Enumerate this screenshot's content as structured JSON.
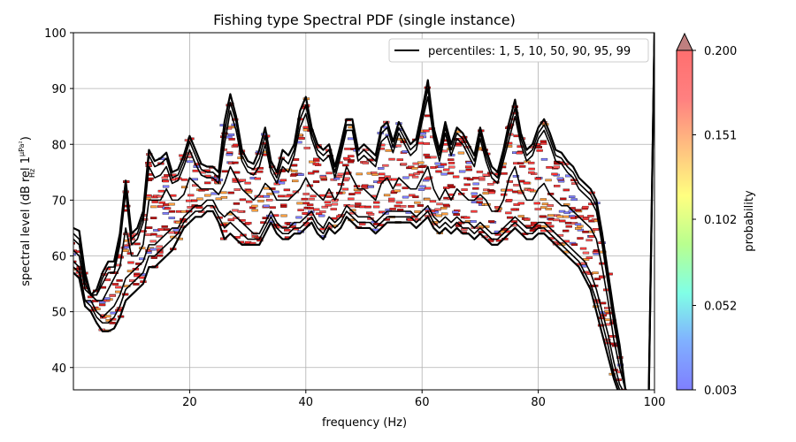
{
  "chart_data": {
    "type": "line",
    "title": "Fishing type Spectral PDF (single instance)",
    "xlabel": "frequency (Hz)",
    "ylabel_main": "spectral level (dB rel 1",
    "ylabel_num": "μPa²",
    "ylabel_den": "Hz",
    "ylabel_close": ")",
    "xlim": [
      0,
      100
    ],
    "ylim": [
      36,
      100
    ],
    "xticks": [
      20,
      40,
      60,
      80,
      100
    ],
    "yticks": [
      40,
      50,
      60,
      70,
      80,
      90,
      100
    ],
    "grid": true,
    "legend": {
      "label": "percentiles: 1, 5, 10, 50, 90, 95, 99",
      "placement": "top-right"
    },
    "colorbar": {
      "label": "probability",
      "ticks": [
        "0.200",
        "0.151",
        "0.102",
        "0.052",
        "0.003"
      ],
      "range": [
        0.003,
        0.2
      ],
      "extend": "max",
      "colors": [
        "#7f7fff",
        "#80b0ff",
        "#80ffe6",
        "#b8ff8f",
        "#ffff80",
        "#ffc080",
        "#ff8080",
        "#ff6f6f"
      ]
    },
    "x": [
      0,
      1,
      2,
      3,
      4,
      5,
      6,
      7,
      8,
      9,
      10,
      11,
      12,
      13,
      14,
      15,
      16,
      17,
      18,
      19,
      20,
      21,
      22,
      23,
      24,
      25,
      26,
      27,
      28,
      29,
      30,
      31,
      32,
      33,
      34,
      35,
      36,
      37,
      38,
      39,
      40,
      41,
      42,
      43,
      44,
      45,
      46,
      47,
      48,
      49,
      50,
      51,
      52,
      53,
      54,
      55,
      56,
      57,
      58,
      59,
      60,
      61,
      62,
      63,
      64,
      65,
      66,
      67,
      68,
      69,
      70,
      71,
      72,
      73,
      74,
      75,
      76,
      77,
      78,
      79,
      80,
      81,
      82,
      83,
      84,
      85,
      86,
      87,
      88,
      89,
      90,
      91,
      92,
      93,
      94,
      95,
      96,
      97,
      98,
      99,
      100
    ],
    "series": [
      {
        "values": [
          65,
          64.5,
          57,
          53,
          54,
          57,
          59,
          59,
          64,
          73.5,
          64,
          65,
          68,
          79,
          77,
          77.5,
          78.5,
          75,
          75.5,
          78,
          81.5,
          79,
          76.5,
          76,
          76,
          75,
          84,
          89,
          85,
          79,
          77,
          76.5,
          79,
          83,
          77,
          75,
          79,
          78,
          80,
          86,
          88.5,
          83,
          80,
          79,
          80,
          76,
          80,
          84.5,
          84.5,
          79,
          80,
          79,
          78,
          83,
          84,
          80.5,
          84,
          82,
          80,
          81,
          86,
          91.5,
          83,
          79,
          84,
          80,
          83,
          82,
          80,
          78,
          83,
          79,
          76,
          75,
          79,
          84,
          88,
          82,
          79,
          80,
          83,
          84.5,
          82,
          79,
          78.5,
          77,
          76,
          74,
          73,
          72,
          70,
          64,
          57,
          50,
          44,
          36,
          34,
          34,
          34,
          34,
          100
        ]
      },
      {
        "values": [
          64,
          63,
          56,
          53,
          53,
          56,
          58,
          58,
          63,
          72.5,
          63,
          64,
          67,
          78,
          76,
          76.5,
          77.5,
          74,
          74.5,
          77,
          80.5,
          78,
          75.5,
          75,
          75,
          74,
          82,
          87.5,
          84,
          78,
          76,
          75.5,
          77.5,
          81.5,
          76,
          74,
          77.5,
          76.5,
          79,
          84.5,
          87,
          82,
          79,
          78,
          79,
          75,
          79,
          83.5,
          83.5,
          78,
          79,
          78,
          77,
          82,
          83,
          79.5,
          83,
          81,
          79,
          80,
          85,
          90,
          82,
          78,
          83,
          79,
          82,
          81,
          79,
          77,
          82,
          78,
          75,
          74,
          78,
          82.5,
          86.5,
          81,
          78,
          79,
          82,
          83.5,
          81,
          78,
          77.5,
          76,
          75,
          73,
          72,
          71,
          69,
          63,
          56,
          49,
          43,
          36,
          34,
          34,
          34,
          34,
          100
        ]
      },
      {
        "values": [
          63,
          62,
          55,
          53,
          53,
          55,
          57,
          57,
          62,
          71.5,
          62,
          63,
          66,
          76,
          74,
          74.5,
          76,
          73,
          73.5,
          76,
          79,
          76.5,
          74.5,
          74,
          74,
          73,
          80,
          86,
          82.5,
          77,
          75,
          74.5,
          76,
          80,
          75,
          73,
          76,
          75,
          78,
          83,
          85.5,
          81,
          78,
          77,
          78,
          74,
          78,
          82.5,
          82.5,
          77,
          78,
          77,
          76,
          80.5,
          81.5,
          78.5,
          82,
          80,
          78,
          79,
          84,
          88.5,
          81,
          77,
          82,
          78,
          81,
          80,
          78,
          76,
          81,
          77,
          74,
          73,
          77,
          81,
          85,
          80,
          77,
          78,
          81,
          82.5,
          80,
          77,
          76.5,
          75,
          74,
          72,
          71,
          70,
          68,
          62,
          55,
          48,
          42,
          36,
          34,
          34,
          34,
          34,
          100
        ]
      },
      {
        "values": [
          61,
          60,
          54,
          53,
          52,
          52,
          54,
          56,
          58,
          65,
          60,
          60,
          62,
          70,
          70,
          70,
          72,
          70,
          70,
          71,
          74,
          73,
          72,
          72,
          72,
          71,
          73,
          76,
          74,
          72,
          71,
          70,
          71,
          73,
          72,
          70,
          70,
          70,
          71,
          72,
          74,
          72,
          71,
          70,
          72,
          70,
          72,
          76,
          74,
          72,
          72,
          71,
          70,
          73,
          74,
          72,
          74,
          73,
          72,
          72,
          74,
          76,
          72,
          70,
          72,
          70,
          72,
          71,
          70,
          70,
          71,
          70,
          68,
          68,
          70,
          74,
          76,
          72,
          70,
          70,
          72,
          73,
          71,
          70,
          69,
          69,
          68,
          67,
          66,
          65,
          63,
          58,
          52,
          45,
          40,
          36,
          34,
          34,
          34,
          34,
          100
        ]
      },
      {
        "values": [
          59,
          58,
          52,
          52,
          50,
          49,
          50,
          51,
          53,
          56,
          57,
          58,
          59,
          62,
          62,
          63,
          64,
          65,
          65,
          67,
          68,
          69,
          69,
          70,
          70,
          68,
          67,
          68,
          67,
          66,
          65,
          64,
          64,
          66,
          68,
          66,
          65,
          65,
          66,
          66,
          67,
          68,
          66,
          65,
          67,
          66,
          67,
          69,
          68,
          67,
          67,
          67,
          66,
          67,
          68,
          68,
          68,
          68,
          68,
          67,
          68,
          69,
          67,
          66,
          67,
          66,
          67,
          66,
          66,
          65,
          66,
          65,
          64,
          64,
          65,
          66,
          67,
          66,
          65,
          65,
          66,
          66,
          65,
          64,
          63,
          62,
          61,
          60,
          59,
          57,
          54,
          50,
          46,
          41,
          37,
          35,
          34,
          34,
          34,
          34,
          100
        ]
      },
      {
        "values": [
          58,
          57,
          52,
          51,
          49,
          48,
          48,
          49,
          51,
          54,
          55,
          56,
          57,
          60,
          60,
          61,
          62,
          63,
          64,
          66,
          67,
          68,
          68,
          69,
          69,
          67,
          65,
          66,
          65,
          64,
          63,
          63,
          63,
          65,
          67,
          65,
          64,
          64,
          65,
          65,
          66,
          67,
          65,
          64,
          66,
          65,
          66,
          68,
          67,
          66,
          66,
          66,
          65,
          66,
          67,
          67,
          67,
          67,
          67,
          66,
          67,
          68,
          66,
          65,
          66,
          65,
          66,
          65,
          65,
          64,
          65,
          64,
          63,
          63,
          64,
          65,
          66,
          65,
          64,
          64,
          65,
          65,
          64,
          63,
          62,
          61,
          60,
          59,
          57,
          55,
          52,
          48,
          44,
          39,
          36,
          35,
          34,
          34,
          34,
          34,
          100
        ]
      },
      {
        "values": [
          57,
          56,
          51,
          50,
          48,
          46.5,
          46.5,
          47,
          49,
          52,
          53,
          54,
          55,
          58,
          58,
          59,
          60,
          61,
          63,
          65,
          66,
          67,
          67,
          68,
          68,
          66,
          63,
          64,
          63,
          62,
          62,
          62,
          62,
          64,
          66,
          64,
          63,
          63,
          64,
          64,
          65,
          66,
          64,
          63,
          65,
          64,
          65,
          67,
          66,
          65,
          65,
          65,
          64,
          65,
          66,
          66,
          66,
          66,
          66,
          65,
          66,
          67,
          65,
          64,
          65,
          64,
          65,
          64,
          64,
          63,
          64,
          63,
          62,
          62,
          63,
          64,
          65,
          64,
          63,
          63,
          64,
          64,
          63,
          62,
          61,
          60,
          59,
          58,
          56,
          54,
          50,
          46,
          42,
          38,
          35,
          34,
          34,
          34,
          34,
          34,
          100
        ]
      }
    ]
  }
}
